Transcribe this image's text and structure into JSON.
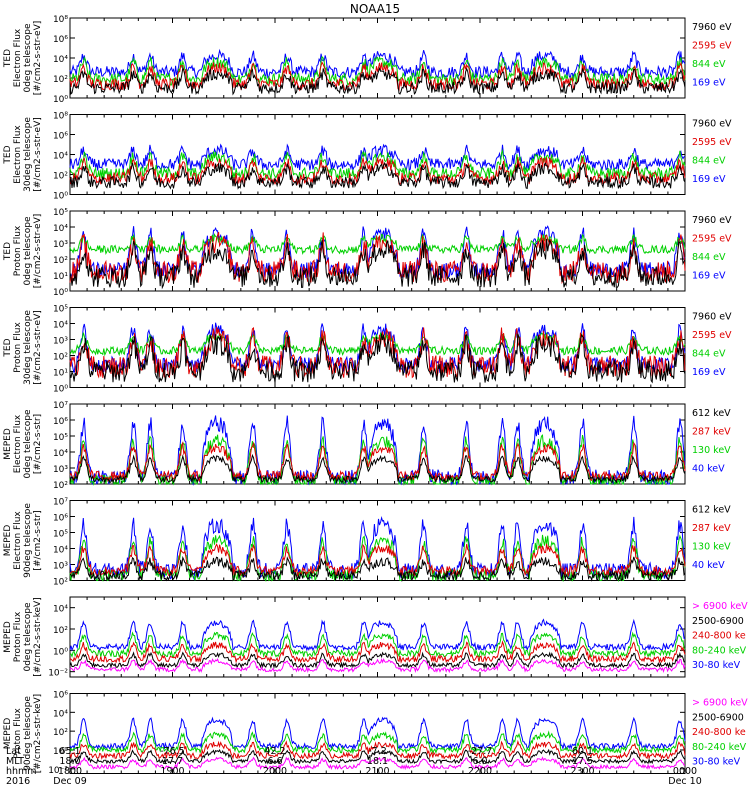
{
  "title": "NOAA15",
  "chart_data": [
    {
      "type": "line",
      "ylabel": [
        "TED",
        "Electron Flux",
        "0deg telescope",
        "[#/cm2-s-str-eV]"
      ],
      "yticks": [
        {
          "exp": 0,
          "label": "10⁰"
        },
        {
          "exp": 2,
          "label": "10²"
        },
        {
          "exp": 4,
          "label": "10⁴"
        },
        {
          "exp": 6,
          "label": "10⁶"
        },
        {
          "exp": 8,
          "label": "10⁸"
        }
      ],
      "ylim": [
        0,
        8
      ],
      "series": [
        {
          "name": "7960 eV",
          "color": "#000000",
          "base": 1.0,
          "peak": 2.4,
          "noise": 0.6
        },
        {
          "name": "2595 eV",
          "color": "#e00000",
          "base": 1.4,
          "peak": 3.0,
          "noise": 0.6
        },
        {
          "name": "844 eV",
          "color": "#00d000",
          "base": 1.9,
          "peak": 3.6,
          "noise": 0.6
        },
        {
          "name": "169 eV",
          "color": "#0000ff",
          "base": 2.6,
          "peak": 4.2,
          "noise": 0.6
        }
      ]
    },
    {
      "type": "line",
      "ylabel": [
        "TED",
        "Electron Flux",
        "30deg telescope",
        "[#/cm2-s-str-eV]"
      ],
      "yticks": [
        {
          "exp": 0,
          "label": "10⁰"
        },
        {
          "exp": 2,
          "label": "10²"
        },
        {
          "exp": 4,
          "label": "10⁴"
        },
        {
          "exp": 6,
          "label": "10⁶"
        },
        {
          "exp": 8,
          "label": "10⁸"
        }
      ],
      "ylim": [
        0,
        8
      ],
      "series": [
        {
          "name": "7960 eV",
          "color": "#000000",
          "base": 1.2,
          "peak": 2.6,
          "noise": 0.6
        },
        {
          "name": "2595 eV",
          "color": "#e00000",
          "base": 1.6,
          "peak": 3.2,
          "noise": 0.6
        },
        {
          "name": "844 eV",
          "color": "#00d000",
          "base": 2.1,
          "peak": 3.8,
          "noise": 0.6
        },
        {
          "name": "169 eV",
          "color": "#0000ff",
          "base": 3.0,
          "peak": 4.4,
          "noise": 0.6
        }
      ]
    },
    {
      "type": "line",
      "ylabel": [
        "TED",
        "Proton Flux",
        "0deg telescope",
        "[#/cm2-s-str-eV]"
      ],
      "yticks": [
        {
          "exp": 0,
          "label": "10⁰"
        },
        {
          "exp": 1,
          "label": "10¹"
        },
        {
          "exp": 2,
          "label": "10²"
        },
        {
          "exp": 3,
          "label": "10³"
        },
        {
          "exp": 4,
          "label": "10⁴"
        },
        {
          "exp": 5,
          "label": "10⁵"
        }
      ],
      "ylim": [
        0,
        5
      ],
      "series": [
        {
          "name": "7960 eV",
          "color": "#000000",
          "base": 0.9,
          "peak": 2.6,
          "noise": 0.7
        },
        {
          "name": "2595 eV",
          "color": "#e00000",
          "base": 1.2,
          "peak": 3.0,
          "noise": 0.7
        },
        {
          "name": "844 eV",
          "color": "#00d000",
          "base": 2.6,
          "peak": 3.3,
          "noise": 0.25
        },
        {
          "name": "169 eV",
          "color": "#0000ff",
          "base": 1.3,
          "peak": 3.6,
          "noise": 0.5
        }
      ]
    },
    {
      "type": "line",
      "ylabel": [
        "TED",
        "Proton Flux",
        "30deg telescope",
        "[#/cm2-s-str-eV]"
      ],
      "yticks": [
        {
          "exp": 0,
          "label": "10⁰"
        },
        {
          "exp": 1,
          "label": "10¹"
        },
        {
          "exp": 2,
          "label": "10²"
        },
        {
          "exp": 3,
          "label": "10³"
        },
        {
          "exp": 4,
          "label": "10⁴"
        },
        {
          "exp": 5,
          "label": "10⁵"
        }
      ],
      "ylim": [
        0,
        5
      ],
      "series": [
        {
          "name": "7960 eV",
          "color": "#000000",
          "base": 1.0,
          "peak": 2.7,
          "noise": 0.7
        },
        {
          "name": "2595 eV",
          "color": "#e00000",
          "base": 1.3,
          "peak": 3.1,
          "noise": 0.7
        },
        {
          "name": "844 eV",
          "color": "#00d000",
          "base": 2.3,
          "peak": 3.2,
          "noise": 0.25
        },
        {
          "name": "169 eV",
          "color": "#0000ff",
          "base": 1.4,
          "peak": 3.6,
          "noise": 0.5
        }
      ]
    },
    {
      "type": "line",
      "ylabel": [
        "MEPED",
        "Electron Flux",
        "0deg telescope",
        "[#/cm2-s-str]"
      ],
      "yticks": [
        {
          "exp": 2,
          "label": "10²"
        },
        {
          "exp": 3,
          "label": "10³"
        },
        {
          "exp": 4,
          "label": "10⁴"
        },
        {
          "exp": 5,
          "label": "10⁵"
        },
        {
          "exp": 6,
          "label": "10⁶"
        },
        {
          "exp": 7,
          "label": "10⁷"
        }
      ],
      "ylim": [
        2,
        7
      ],
      "series": [
        {
          "name": "612 keV",
          "color": "#000000",
          "base": 2.3,
          "peak": 3.6,
          "noise": 0.2
        },
        {
          "name": "287 keV",
          "color": "#e00000",
          "base": 2.5,
          "peak": 4.3,
          "noise": 0.3
        },
        {
          "name": "130 keV",
          "color": "#00d000",
          "base": 2.2,
          "peak": 4.7,
          "noise": 0.4
        },
        {
          "name": "40 keV",
          "color": "#0000ff",
          "base": 2.4,
          "peak": 5.8,
          "noise": 0.5
        }
      ]
    },
    {
      "type": "line",
      "ylabel": [
        "MEPED",
        "Electron Flux",
        "90deg telescope",
        "[#/cm2-s-str]"
      ],
      "yticks": [
        {
          "exp": 2,
          "label": "10²"
        },
        {
          "exp": 3,
          "label": "10³"
        },
        {
          "exp": 4,
          "label": "10⁴"
        },
        {
          "exp": 5,
          "label": "10⁵"
        },
        {
          "exp": 6,
          "label": "10⁶"
        },
        {
          "exp": 7,
          "label": "10⁷"
        }
      ],
      "ylim": [
        2,
        7
      ],
      "series": [
        {
          "name": "612 keV",
          "color": "#000000",
          "base": 2.3,
          "peak": 3.2,
          "noise": 0.3
        },
        {
          "name": "287 keV",
          "color": "#e00000",
          "base": 2.6,
          "peak": 4.0,
          "noise": 0.3
        },
        {
          "name": "130 keV",
          "color": "#00d000",
          "base": 2.3,
          "peak": 4.5,
          "noise": 0.4
        },
        {
          "name": "40 keV",
          "color": "#0000ff",
          "base": 2.6,
          "peak": 5.5,
          "noise": 0.5
        }
      ]
    },
    {
      "type": "line",
      "ylabel": [
        "MEPED",
        "Proton Flux",
        "0deg telescope",
        "[#/cm2-s-str-keV]"
      ],
      "yticks": [
        {
          "exp": -2,
          "label": "10⁻²"
        },
        {
          "exp": 0,
          "label": "10⁰"
        },
        {
          "exp": 2,
          "label": "10²"
        },
        {
          "exp": 4,
          "label": "10⁴"
        }
      ],
      "ylim": [
        -2.5,
        5
      ],
      "series": [
        {
          "name": "> 6900 keV",
          "color": "#ff00ff",
          "base": -1.8,
          "peak": -1.0,
          "noise": 0.2
        },
        {
          "name": "2500-6900",
          "color": "#000000",
          "base": -1.4,
          "peak": -0.4,
          "noise": 0.2
        },
        {
          "name": "240-800 ke",
          "color": "#e00000",
          "base": -0.8,
          "peak": 0.5,
          "noise": 0.3
        },
        {
          "name": "80-240 keV",
          "color": "#00d000",
          "base": -0.3,
          "peak": 1.4,
          "noise": 0.3
        },
        {
          "name": "30-80 keV",
          "color": "#0000ff",
          "base": 0.3,
          "peak": 2.6,
          "noise": 0.3
        }
      ]
    },
    {
      "type": "line",
      "ylabel": [
        "MEPED",
        "Proton Flux",
        "90deg telescope",
        "[#/cm2-s-str-keV]"
      ],
      "yticks": [
        {
          "exp": -2,
          "label": "10⁻²"
        },
        {
          "exp": 0,
          "label": "10⁰"
        },
        {
          "exp": 2,
          "label": "10²"
        },
        {
          "exp": 4,
          "label": "10⁴"
        },
        {
          "exp": 6,
          "label": "10⁶"
        }
      ],
      "ylim": [
        -2.5,
        6
      ],
      "series": [
        {
          "name": "> 6900 keV",
          "color": "#ff00ff",
          "base": -1.8,
          "peak": -1.0,
          "noise": 0.2
        },
        {
          "name": "2500-6900",
          "color": "#000000",
          "base": -1.2,
          "peak": -0.2,
          "noise": 0.2
        },
        {
          "name": "240-800 ke",
          "color": "#e00000",
          "base": -0.6,
          "peak": 0.6,
          "noise": 0.3
        },
        {
          "name": "80-240 keV",
          "color": "#00d000",
          "base": 0.0,
          "peak": 1.6,
          "noise": 0.3
        },
        {
          "name": "30-80 keV",
          "color": "#0000ff",
          "base": 0.4,
          "peak": 3.2,
          "noise": 0.3
        }
      ]
    }
  ],
  "time_axis": {
    "row_labels": [
      "Lat",
      "MLT",
      "hhmm",
      "2016"
    ],
    "ticks": [
      {
        "t": 0,
        "lat": "65.1",
        "mlt": "18.0",
        "hhmm": "1800",
        "date": "Dec 09"
      },
      {
        "t": 60,
        "lat": "-76.5",
        "mlt": "17.7",
        "hhmm": "1900",
        "date": ""
      },
      {
        "t": 120,
        "lat": "42.2",
        "mlt": "6.6",
        "hhmm": "2000",
        "date": ""
      },
      {
        "t": 180,
        "lat": "-7.2",
        "mlt": "18.1",
        "hhmm": "2100",
        "date": ""
      },
      {
        "t": 240,
        "lat": "-27.7",
        "mlt": "6.0",
        "hhmm": "2200",
        "date": ""
      },
      {
        "t": 300,
        "lat": "60.1",
        "mlt": "17.5",
        "hhmm": "2300",
        "date": ""
      },
      {
        "t": 360,
        "lat": "",
        "mlt": "",
        "hhmm": "0000",
        "date": "Dec 10"
      }
    ],
    "range_minutes": [
      0,
      360
    ]
  }
}
